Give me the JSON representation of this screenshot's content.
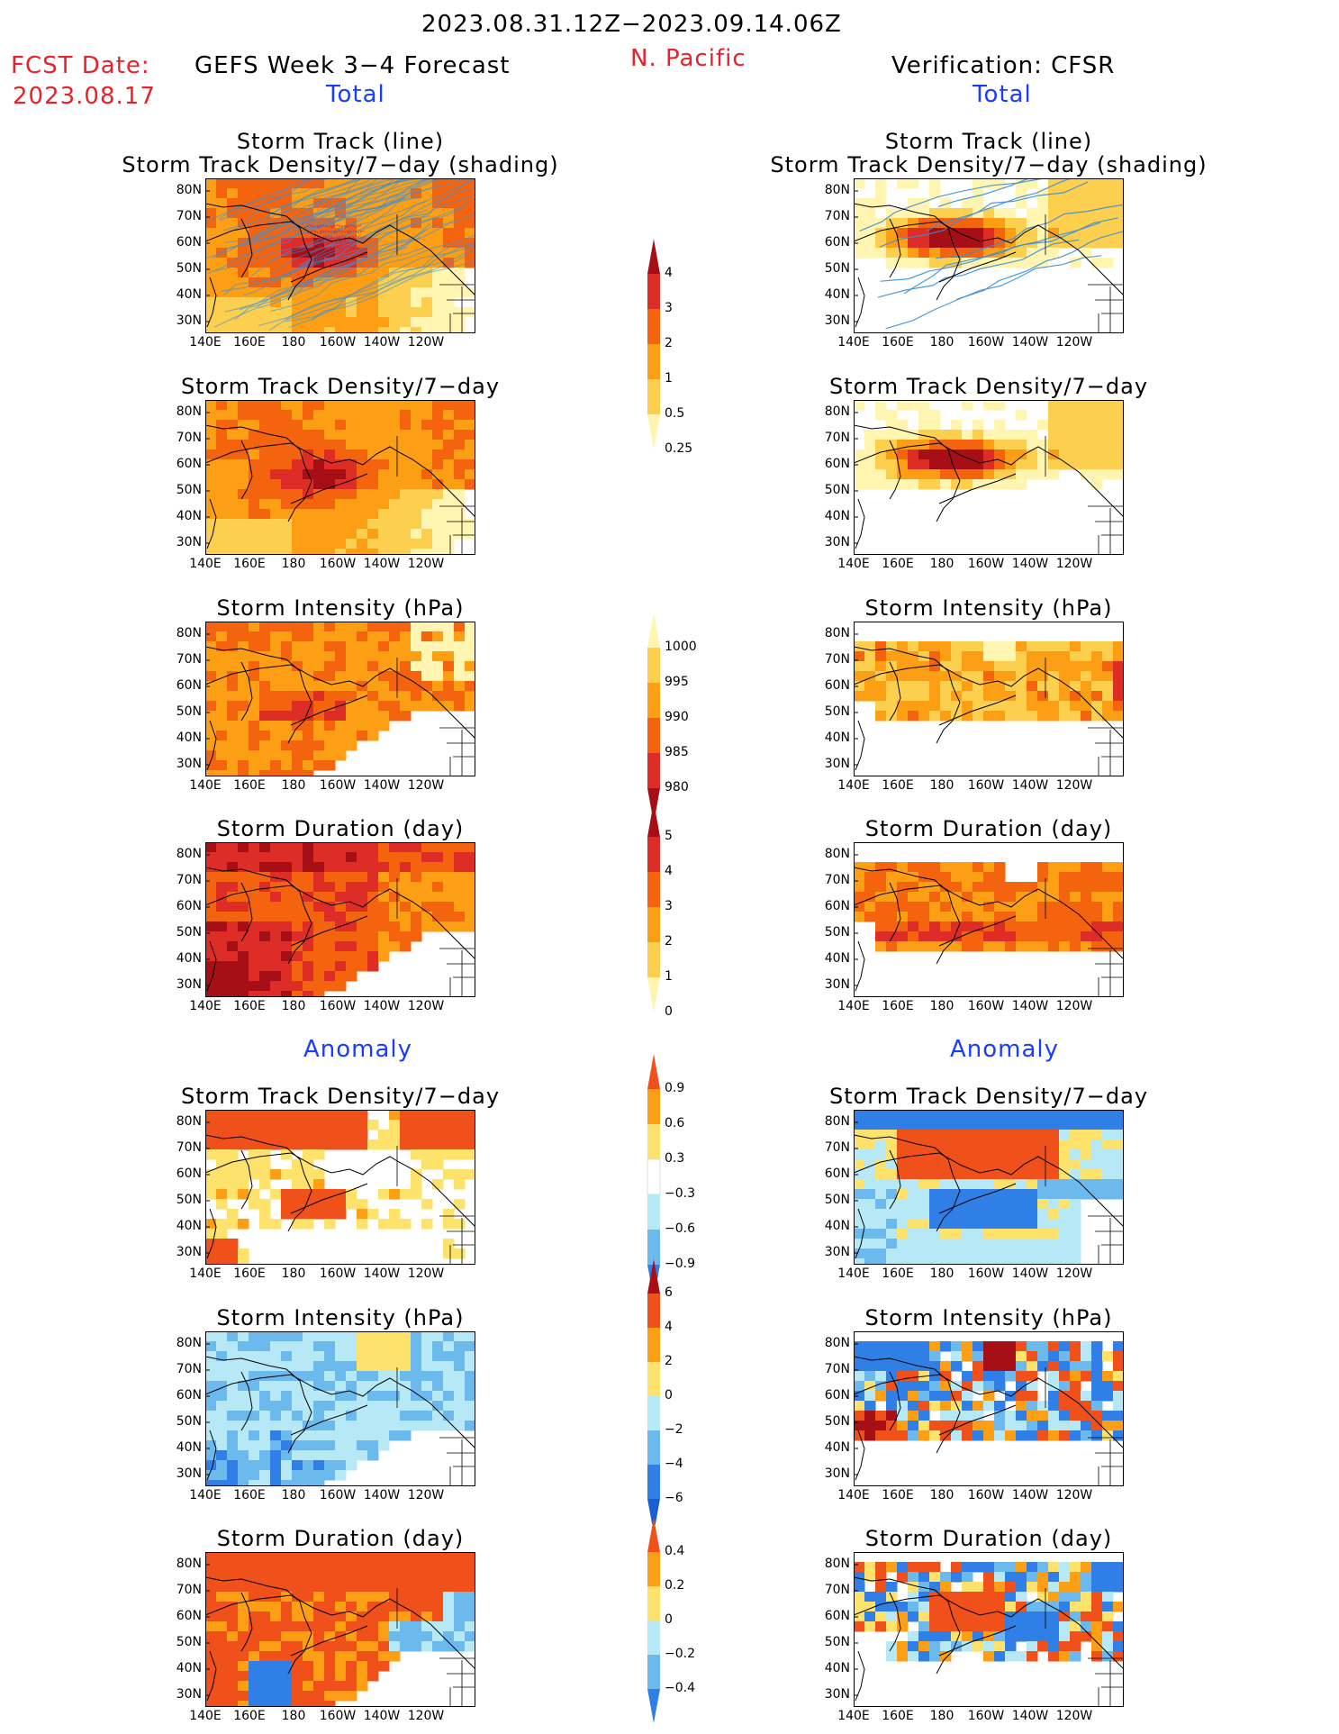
{
  "header": {
    "date_range": "2023.08.31.12Z−2023.09.14.06Z",
    "fcst_label": "FCST Date:",
    "fcst_date": "2023.08.17",
    "model": "GEFS Week 3−4 Forecast",
    "region": "N. Pacific",
    "verification": "Verification: CFSR",
    "left_total": "Total",
    "right_total": "Total",
    "left_anom": "Anomaly",
    "right_anom": "Anomaly"
  },
  "axes": {
    "lat_labels": [
      "80N",
      "70N",
      "60N",
      "50N",
      "40N",
      "30N"
    ],
    "lon_labels": [
      "140E",
      "160E",
      "180",
      "160W",
      "140W",
      "120W"
    ]
  },
  "panels": [
    {
      "id": "fc-track",
      "title": [
        "Storm Track (line)",
        "Storm Track Density/7−day (shading)"
      ],
      "scheme": "density"
    },
    {
      "id": "fc-density",
      "title": [
        "Storm Track Density/7−day"
      ],
      "scheme": "density"
    },
    {
      "id": "fc-intensity",
      "title": [
        "Storm Intensity (hPa)"
      ],
      "scheme": "intensity"
    },
    {
      "id": "fc-duration",
      "title": [
        "Storm Duration (day)"
      ],
      "scheme": "duration"
    },
    {
      "id": "fc-anom-density",
      "title": [
        "Storm Track Density/7−day"
      ],
      "scheme": "anom"
    },
    {
      "id": "fc-anom-intensity",
      "title": [
        "Storm Intensity (hPa)"
      ],
      "scheme": "anom"
    },
    {
      "id": "fc-anom-duration",
      "title": [
        "Storm Duration (day)"
      ],
      "scheme": "anom"
    },
    {
      "id": "vf-track",
      "title": [
        "Storm Track (line)",
        "Storm Track Density/7−day (shading)"
      ],
      "scheme": "density"
    },
    {
      "id": "vf-density",
      "title": [
        "Storm Track Density/7−day"
      ],
      "scheme": "density"
    },
    {
      "id": "vf-intensity",
      "title": [
        "Storm Intensity (hPa)"
      ],
      "scheme": "intensity"
    },
    {
      "id": "vf-duration",
      "title": [
        "Storm Duration (day)"
      ],
      "scheme": "duration"
    },
    {
      "id": "vf-anom-density",
      "title": [
        "Storm Track Density/7−day"
      ],
      "scheme": "anom"
    },
    {
      "id": "vf-anom-intensity",
      "title": [
        "Storm Intensity (hPa)"
      ],
      "scheme": "anom"
    },
    {
      "id": "vf-anom-duration",
      "title": [
        "Storm Duration (day)"
      ],
      "scheme": "anom"
    }
  ],
  "colorbars": [
    {
      "id": "cb-density",
      "labels": [
        "4",
        "3",
        "2",
        "1",
        "0.5",
        "0.25"
      ],
      "colors": [
        "#a50f15",
        "#de2d26",
        "#f4640f",
        "#fd9f14",
        "#fdcf4e",
        "#fff5b0"
      ]
    },
    {
      "id": "cb-intensity",
      "labels": [
        "1000",
        "995",
        "990",
        "985",
        "980"
      ],
      "colors": [
        "#fff5b0",
        "#fdcf4e",
        "#fd9f14",
        "#f4640f",
        "#de2d26",
        "#a50f15"
      ]
    },
    {
      "id": "cb-duration",
      "labels": [
        "5",
        "4",
        "3",
        "2",
        "1",
        "0"
      ],
      "colors": [
        "#a50f15",
        "#de2d26",
        "#f4640f",
        "#fd9f14",
        "#fdcf4e",
        "#fff5b0"
      ]
    },
    {
      "id": "cb-anom-density",
      "labels": [
        "0.9",
        "0.6",
        "0.3",
        "−0.3",
        "−0.6",
        "−0.9"
      ],
      "colors": [
        "#f0501a",
        "#fd9f14",
        "#fde26b",
        "#ffffff",
        "#b6e8f5",
        "#6cb9ee",
        "#2f7fe6"
      ]
    },
    {
      "id": "cb-anom-intensity",
      "labels": [
        "6",
        "4",
        "2",
        "0",
        "−2",
        "−4",
        "−6"
      ],
      "colors": [
        "#a50f15",
        "#f0501a",
        "#fd9f14",
        "#fde26b",
        "#b6e8f5",
        "#6cb9ee",
        "#2f7fe6",
        "#1a5fd0"
      ]
    },
    {
      "id": "cb-anom-duration",
      "labels": [
        "0.4",
        "0.2",
        "0",
        "−0.2",
        "−0.4"
      ],
      "colors": [
        "#f0501a",
        "#fd9f14",
        "#fde26b",
        "#b6e8f5",
        "#6cb9ee",
        "#2f7fe6"
      ]
    }
  ]
}
